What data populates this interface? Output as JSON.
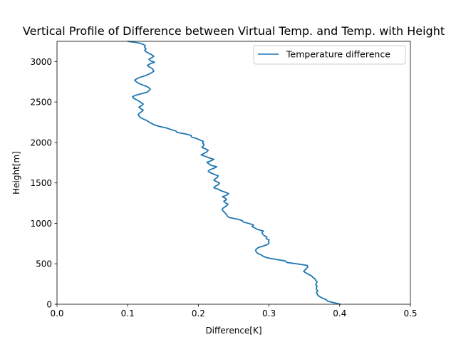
{
  "chart_data": {
    "type": "line",
    "title": "Vertical Profile of Difference between Virtual Temp. and Temp. with Height",
    "xlabel": "Difference[K]",
    "ylabel": "Height[m]",
    "xlim": [
      0,
      0.5
    ],
    "ylim": [
      0,
      3250
    ],
    "xticks": [
      "0.0",
      "0.1",
      "0.2",
      "0.3",
      "0.4",
      "0.5"
    ],
    "yticks": [
      "0",
      "500",
      "1000",
      "1500",
      "2000",
      "2500",
      "3000"
    ],
    "grid": false,
    "legend_position": "top-right",
    "colors": {
      "series": "#1f77b4",
      "axes": "#000000",
      "background": "#ffffff"
    },
    "series": [
      {
        "name": "Temperature difference",
        "x": [
          0.401,
          0.392,
          0.383,
          0.381,
          0.376,
          0.372,
          0.369,
          0.368,
          0.367,
          0.369,
          0.367,
          0.367,
          0.368,
          0.366,
          0.367,
          0.368,
          0.366,
          0.365,
          0.362,
          0.36,
          0.356,
          0.352,
          0.349,
          0.351,
          0.353,
          0.355,
          0.354,
          0.34,
          0.325,
          0.323,
          0.31,
          0.298,
          0.292,
          0.289,
          0.284,
          0.282,
          0.281,
          0.282,
          0.285,
          0.292,
          0.298,
          0.3,
          0.299,
          0.3,
          0.296,
          0.297,
          0.293,
          0.291,
          0.29,
          0.292,
          0.284,
          0.28,
          0.276,
          0.278,
          0.272,
          0.264,
          0.262,
          0.255,
          0.244,
          0.241,
          0.24,
          0.238,
          0.236,
          0.234,
          0.234,
          0.237,
          0.24,
          0.242,
          0.238,
          0.236,
          0.24,
          0.238,
          0.234,
          0.24,
          0.243,
          0.238,
          0.232,
          0.228,
          0.222,
          0.224,
          0.228,
          0.23,
          0.226,
          0.222,
          0.224,
          0.227,
          0.228,
          0.222,
          0.217,
          0.214,
          0.216,
          0.222,
          0.226,
          0.218,
          0.215,
          0.212,
          0.218,
          0.222,
          0.215,
          0.21,
          0.204,
          0.208,
          0.212,
          0.214,
          0.21,
          0.205,
          0.207,
          0.208,
          0.206,
          0.207,
          0.202,
          0.197,
          0.19,
          0.19,
          0.182,
          0.17,
          0.168,
          0.161,
          0.155,
          0.145,
          0.138,
          0.134,
          0.13,
          0.127,
          0.122,
          0.118,
          0.116,
          0.115,
          0.117,
          0.12,
          0.122,
          0.118,
          0.116,
          0.12,
          0.122,
          0.119,
          0.116,
          0.112,
          0.108,
          0.107,
          0.112,
          0.12,
          0.128,
          0.13,
          0.132,
          0.13,
          0.126,
          0.12,
          0.115,
          0.112,
          0.11,
          0.113,
          0.118,
          0.125,
          0.13,
          0.134,
          0.137,
          0.136,
          0.134,
          0.13,
          0.128,
          0.132,
          0.138,
          0.132,
          0.13,
          0.134,
          0.137,
          0.134,
          0.13,
          0.126,
          0.124,
          0.126,
          0.124,
          0.125,
          0.122,
          0.115,
          0.1
        ]
      }
    ]
  }
}
